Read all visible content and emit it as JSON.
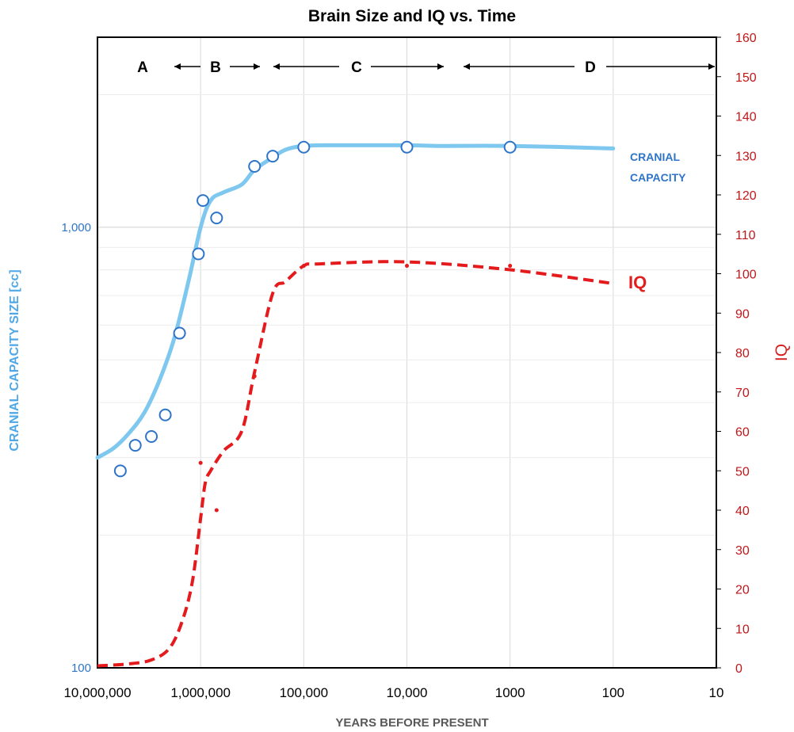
{
  "chart_data": {
    "type": "line",
    "title": "Brain Size and IQ vs. Time",
    "xlabel": "YEARS BEFORE PRESENT",
    "ylabel_left": "CRANIAL CAPACITY SIZE [cc]",
    "ylabel_right": "IQ",
    "x_scale": "log-reversed",
    "xlim": [
      10000000,
      10
    ],
    "x_ticks": [
      10000000,
      1000000,
      100000,
      10000,
      1000,
      100,
      10
    ],
    "x_tick_labels": [
      "10,000,000",
      "1,000,000",
      "100,000",
      "10,000",
      "1000",
      "100",
      "10"
    ],
    "y_left_scale": "log",
    "y_left_lim": [
      100,
      2700
    ],
    "y_left_tick_labels": [
      "1,000",
      "100"
    ],
    "y_right_lim": [
      0,
      160
    ],
    "y_right_ticks": [
      0,
      10,
      20,
      30,
      40,
      50,
      60,
      70,
      80,
      90,
      100,
      110,
      120,
      130,
      140,
      150,
      160
    ],
    "grid": true,
    "periods": [
      {
        "label": "A",
        "start": 10000000,
        "end": 2000000
      },
      {
        "label": "B",
        "start": 2000000,
        "end": 200000
      },
      {
        "label": "C",
        "start": 200000,
        "end": 3000
      },
      {
        "label": "D",
        "start": 3000,
        "end": 10
      }
    ],
    "series": [
      {
        "name": "CRANIAL CAPACITY",
        "axis": "left",
        "color": "#7ec8ef",
        "style": "solid",
        "line": {
          "x": [
            10000000,
            7000000,
            5000000,
            3500000,
            2500000,
            1800000,
            1300000,
            1000000,
            800000,
            600000,
            400000,
            300000,
            200000,
            150000,
            100000,
            50000,
            10000,
            5000,
            1000,
            100
          ],
          "y": [
            300,
            315,
            340,
            380,
            450,
            560,
            760,
            1000,
            1150,
            1200,
            1250,
            1350,
            1440,
            1500,
            1530,
            1535,
            1535,
            1530,
            1530,
            1510
          ]
        },
        "points": {
          "x": [
            6000000,
            4300000,
            3000000,
            2200000,
            1600000,
            1050000,
            950000,
            700000,
            300000,
            200000,
            100000,
            10000,
            1000
          ],
          "y": [
            280,
            320,
            335,
            375,
            575,
            870,
            1150,
            1050,
            1375,
            1450,
            1520,
            1520,
            1520
          ]
        }
      },
      {
        "name": "IQ",
        "axis": "right",
        "color": "#e41a1c",
        "style": "dashed",
        "line": {
          "x": [
            10000000,
            5000000,
            3000000,
            2000000,
            1500000,
            1200000,
            1000000,
            900000,
            800000,
            600000,
            400000,
            300000,
            200000,
            150000,
            100000,
            70000,
            10000,
            1000,
            100
          ],
          "y": [
            0.5,
            1,
            2,
            5,
            12,
            22,
            38,
            47,
            50,
            55,
            60,
            75,
            95,
            98,
            102,
            102.5,
            103,
            101,
            97.5
          ]
        },
        "points": {
          "x": [
            1000000,
            700000,
            300000,
            100000,
            10000,
            1000
          ],
          "y": [
            52,
            40,
            74,
            102,
            102,
            102
          ]
        }
      }
    ]
  }
}
